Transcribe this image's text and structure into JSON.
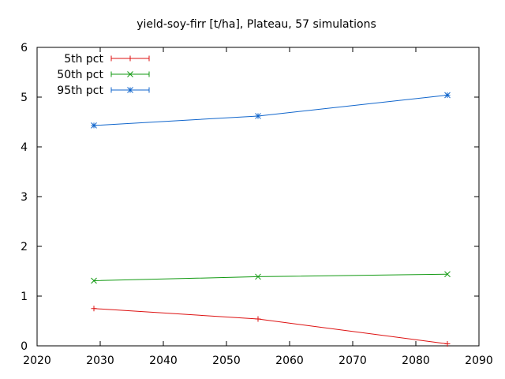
{
  "chart_data": {
    "type": "line",
    "title": "yield-soy-firr [t/ha], Plateau, 57 simulations",
    "xlabel": "",
    "ylabel": "",
    "xlim": [
      2020,
      2090
    ],
    "ylim": [
      0,
      6
    ],
    "x_ticks": [
      "2020",
      "2030",
      "2040",
      "2050",
      "2060",
      "2070",
      "2080",
      "2090"
    ],
    "y_ticks": [
      "0",
      "1",
      "2",
      "3",
      "4",
      "5",
      "6"
    ],
    "grid": false,
    "legend_position": "top-left",
    "x": [
      2029,
      2055,
      2085
    ],
    "series": [
      {
        "name": "5th pct",
        "color": "#dd1111",
        "marker": "plus",
        "values": [
          0.75,
          0.54,
          0.04
        ]
      },
      {
        "name": "50th pct",
        "color": "#119911",
        "marker": "cross",
        "values": [
          1.31,
          1.39,
          1.44
        ]
      },
      {
        "name": "95th pct",
        "color": "#1166cc",
        "marker": "star",
        "values": [
          4.43,
          4.62,
          5.04
        ]
      }
    ]
  }
}
